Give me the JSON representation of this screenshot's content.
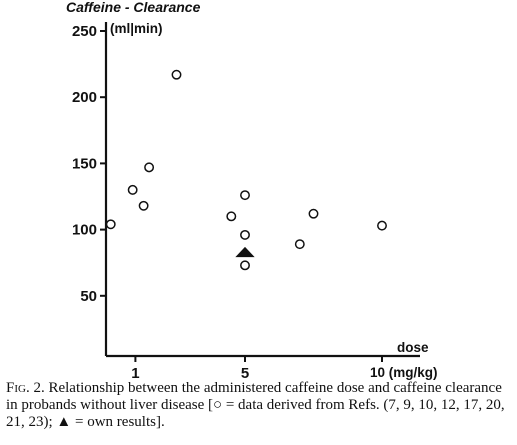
{
  "chart_data": {
    "type": "scatter",
    "ylabel": "Caffeine - Clearance",
    "yunit": "(ml|min)",
    "xlabel": "dose",
    "xunit": "10 (mg/kg)",
    "ylim": [
      0,
      260
    ],
    "xlim": [
      -0.2,
      12.0
    ],
    "yticks": [
      50,
      100,
      150,
      200,
      250
    ],
    "xticks": [
      1,
      5,
      10
    ],
    "ytick_labels": [
      "50",
      "100",
      "150",
      "200",
      "250"
    ],
    "xtick_labels": [
      "1",
      "5",
      ""
    ],
    "grid": false,
    "series": [
      {
        "name": "data derived from Refs. (7, 9, 10, 12, 17, 20, 21, 23)",
        "marker": "open-circle",
        "points": [
          {
            "x": 0.1,
            "y": 104
          },
          {
            "x": 0.9,
            "y": 130
          },
          {
            "x": 1.3,
            "y": 118
          },
          {
            "x": 1.5,
            "y": 147
          },
          {
            "x": 2.5,
            "y": 217
          },
          {
            "x": 4.5,
            "y": 110
          },
          {
            "x": 5.0,
            "y": 126
          },
          {
            "x": 5.0,
            "y": 96
          },
          {
            "x": 5.0,
            "y": 73
          },
          {
            "x": 7.0,
            "y": 89
          },
          {
            "x": 7.5,
            "y": 112
          },
          {
            "x": 10.0,
            "y": 103
          }
        ]
      },
      {
        "name": "own results",
        "marker": "filled-triangle",
        "points": [
          {
            "x": 5.0,
            "y": 83
          }
        ]
      }
    ]
  },
  "caption": {
    "label": "Fig. 2.",
    "text": " Relationship between the administered caffeine dose and caffeine clearance in probands without liver disease [○ = data derived from Refs. (7, 9, 10, 12, 17, 20, 21, 23); ▲ = own results]."
  }
}
